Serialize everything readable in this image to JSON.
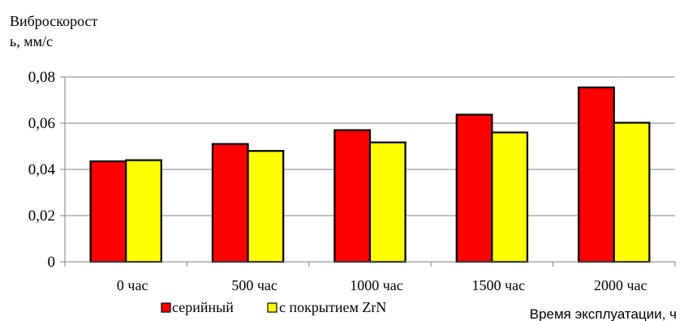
{
  "chart_data": {
    "type": "bar",
    "ylabel_lines": [
      "Виброскорост",
      "ь, мм/с"
    ],
    "xlabel": "Время эксплуатации, ч",
    "categories": [
      "0 час",
      "500 час",
      "1000 час",
      "1500 час",
      "2000 час"
    ],
    "series": [
      {
        "name": "серийный",
        "color": "#ff0000",
        "values": [
          0.0435,
          0.051,
          0.057,
          0.0637,
          0.0755
        ]
      },
      {
        "name": "с покрытием ZrN",
        "color": "#ffff00",
        "values": [
          0.044,
          0.048,
          0.0517,
          0.056,
          0.0602
        ]
      }
    ],
    "ylim": [
      0,
      0.08
    ],
    "yticks": [
      0,
      0.02,
      0.04,
      0.06,
      0.08
    ],
    "ytick_labels": [
      "0",
      "0,02",
      "0,04",
      "0,06",
      "0,08"
    ],
    "grid": true,
    "legend_position": "bottom-center"
  }
}
